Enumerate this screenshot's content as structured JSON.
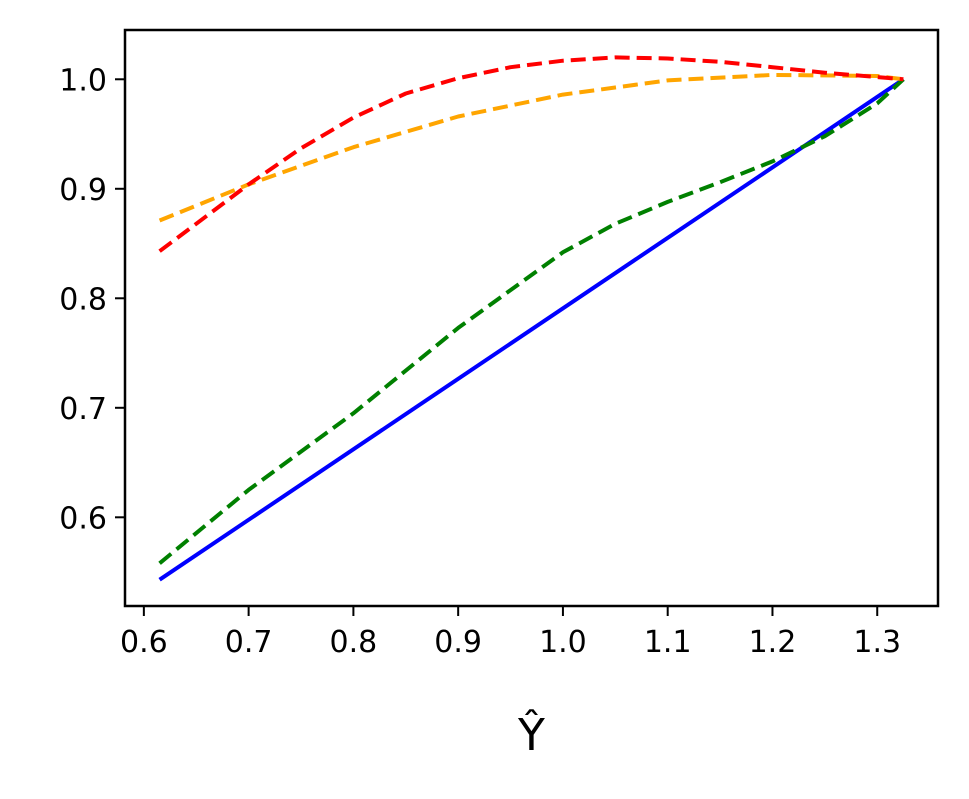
{
  "chart_data": {
    "type": "line",
    "title": "",
    "xlabel": "Ŷ",
    "ylabel": "",
    "xlim": [
      0.582,
      1.358
    ],
    "ylim": [
      0.519,
      1.045
    ],
    "xticks": [
      0.6,
      0.7,
      0.8,
      0.9,
      1.0,
      1.1,
      1.2,
      1.3
    ],
    "xtick_labels": [
      "0.6",
      "0.7",
      "0.8",
      "0.9",
      "1.0",
      "1.1",
      "1.2",
      "1.3"
    ],
    "yticks": [
      0.6,
      0.7,
      0.8,
      0.9,
      1.0
    ],
    "ytick_labels": [
      "0.6",
      "0.7",
      "0.8",
      "0.9",
      "1.0"
    ],
    "grid": false,
    "legend": "none",
    "series": [
      {
        "color": "#0000ff",
        "dash": "solid",
        "x": [
          0.615,
          1.325
        ],
        "y": [
          0.543,
          1.0
        ]
      },
      {
        "color": "#008000",
        "dash": "dashed",
        "x": [
          0.615,
          0.7,
          0.8,
          0.9,
          1.0,
          1.05,
          1.1,
          1.15,
          1.2,
          1.25,
          1.3,
          1.325
        ],
        "y": [
          0.558,
          0.625,
          0.695,
          0.773,
          0.842,
          0.868,
          0.888,
          0.906,
          0.925,
          0.948,
          0.978,
          1.0
        ]
      },
      {
        "color": "#ffa500",
        "dash": "dashed",
        "x": [
          0.615,
          0.7,
          0.8,
          0.9,
          1.0,
          1.1,
          1.2,
          1.3,
          1.325
        ],
        "y": [
          0.871,
          0.904,
          0.938,
          0.966,
          0.986,
          0.999,
          1.004,
          1.003,
          1.0
        ]
      },
      {
        "color": "#ff0000",
        "dash": "dashed",
        "x": [
          0.615,
          0.65,
          0.7,
          0.75,
          0.8,
          0.85,
          0.9,
          0.95,
          1.0,
          1.05,
          1.1,
          1.15,
          1.2,
          1.25,
          1.3,
          1.325
        ],
        "y": [
          0.843,
          0.868,
          0.904,
          0.937,
          0.965,
          0.987,
          1.001,
          1.011,
          1.017,
          1.02,
          1.019,
          1.016,
          1.011,
          1.006,
          1.002,
          1.0
        ]
      }
    ]
  }
}
